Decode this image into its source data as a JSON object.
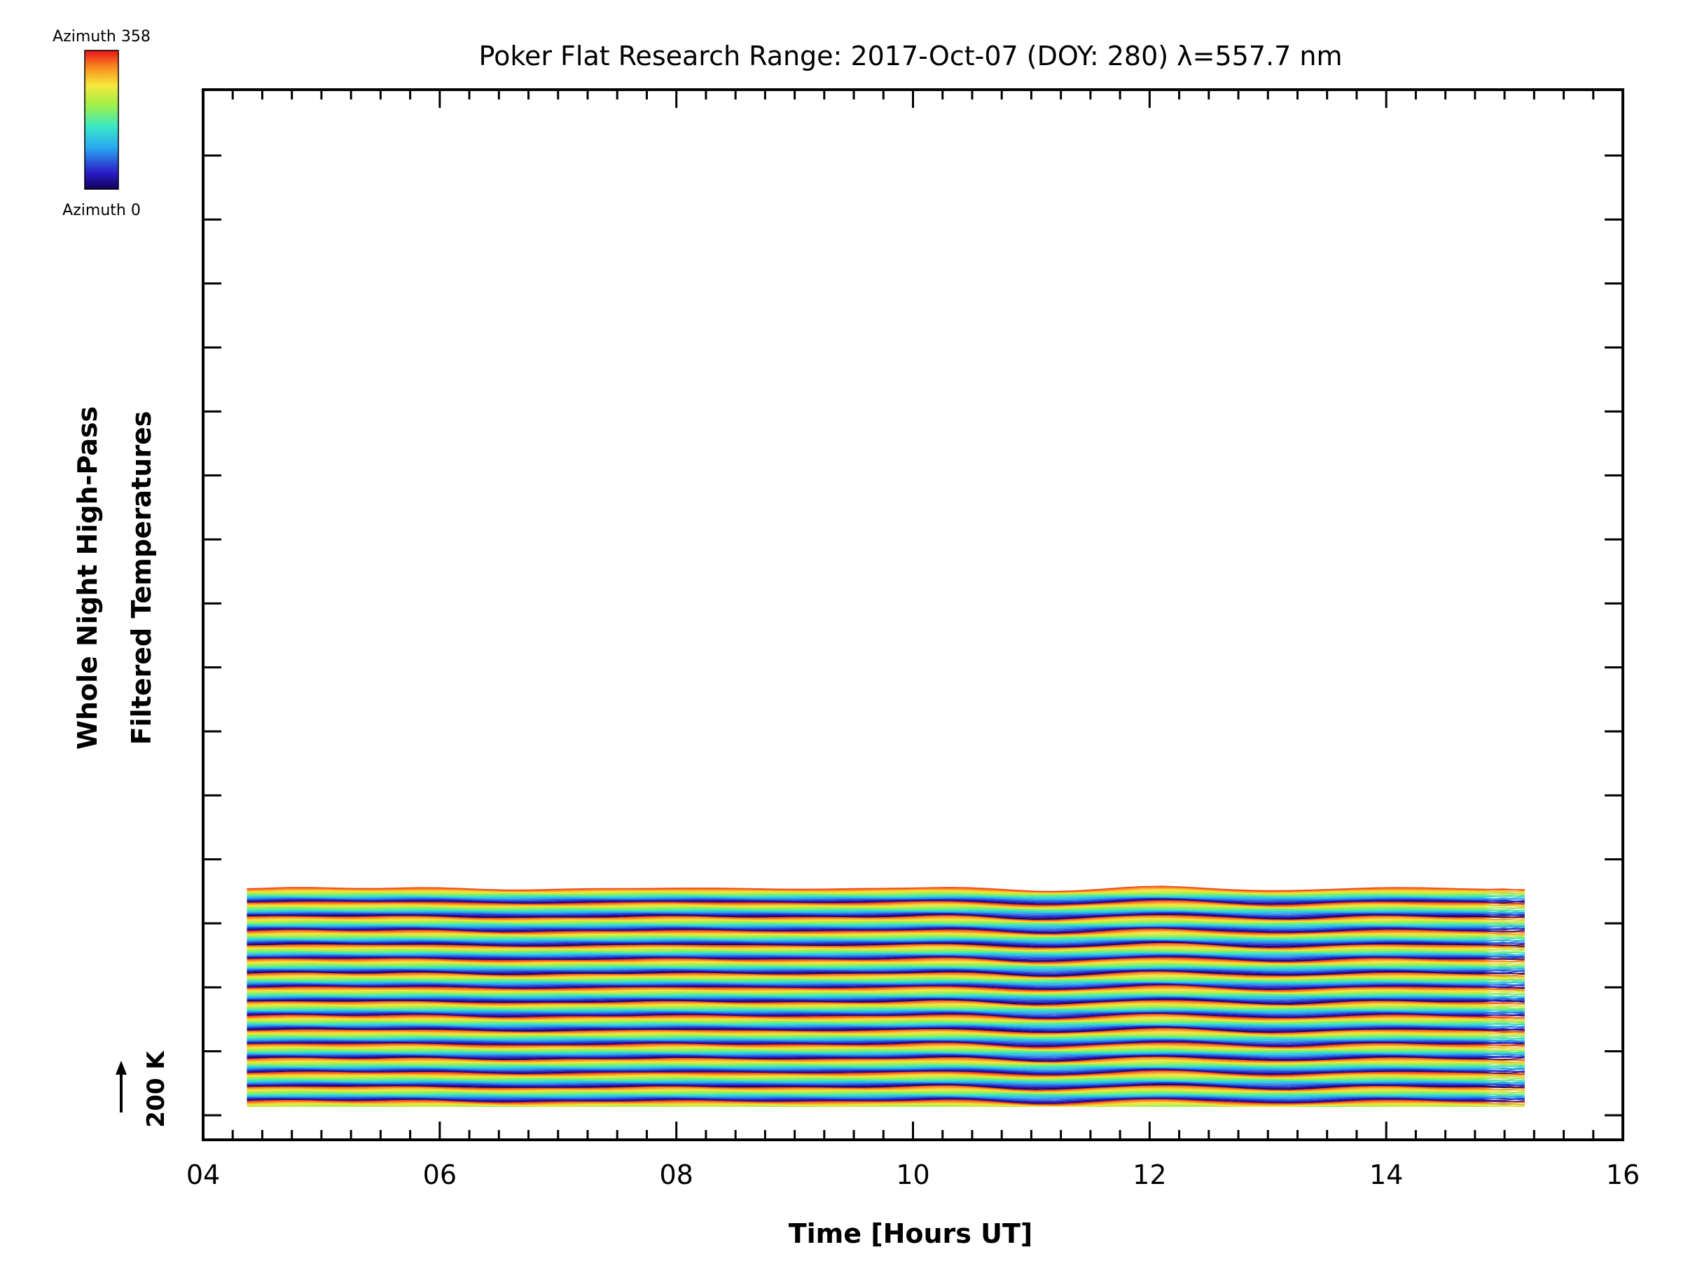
{
  "chart_data": {
    "type": "line",
    "title": "Poker Flat Research Range: 2017-Oct-07 (DOY: 280) λ=557.7 nm",
    "xlabel": "Time [Hours UT]",
    "ylabel_line1": "Whole Night High-Pass",
    "ylabel_line2": "Filtered Temperatures",
    "xlim": [
      4,
      16
    ],
    "x_ticks": [
      "04",
      "06",
      "08",
      "10",
      "12",
      "14",
      "16"
    ],
    "x_tick_values": [
      4,
      6,
      8,
      10,
      12,
      14,
      16
    ],
    "x_minor_step": 0.25,
    "data_range_hours": [
      4.37,
      15.23
    ],
    "scale_bar": "200 K",
    "colorbar": {
      "top_label": "Azimuth 358",
      "bottom_label": "Azimuth 0",
      "colormap": "rainbow",
      "min": 0,
      "max": 358
    },
    "stacked_series_count": 360,
    "offset_per_azimuth_K": 3,
    "azimuth_cycle_count": 16,
    "features_hours": [
      {
        "t": 4.8,
        "shape": "bump",
        "amplitude_K": 6
      },
      {
        "t": 5.8,
        "shape": "bump",
        "amplitude_K": 6
      },
      {
        "t": 6.6,
        "shape": "dip",
        "amplitude_K": 4
      },
      {
        "t": 8.0,
        "shape": "bump",
        "amplitude_K": 5
      },
      {
        "t": 10.3,
        "shape": "bump",
        "amplitude_K": 9
      },
      {
        "t": 11.1,
        "shape": "dip",
        "amplitude_K": 12
      },
      {
        "t": 12.1,
        "shape": "bump",
        "amplitude_K": 12
      },
      {
        "t": 13.1,
        "shape": "dip",
        "amplitude_K": 10
      },
      {
        "t": 14.0,
        "shape": "bump",
        "amplitude_K": 7
      }
    ],
    "colors": {
      "axis": "#000000",
      "background": "#ffffff",
      "baseline": "#888888"
    },
    "grid": false,
    "legend": "colorbar top-left"
  }
}
